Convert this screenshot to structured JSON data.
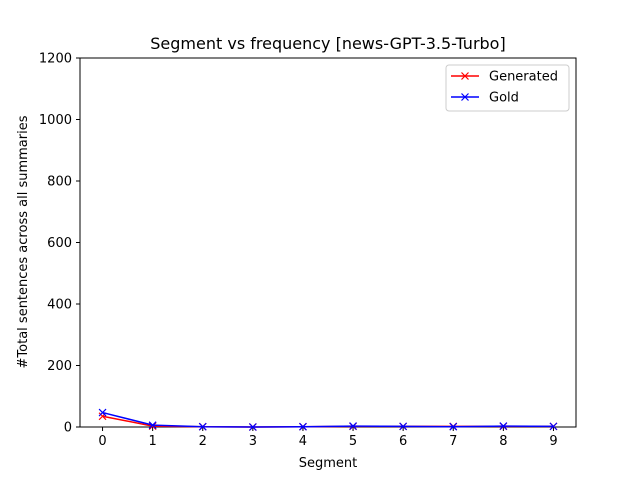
{
  "chart_data": {
    "type": "line",
    "title": "Segment vs frequency [news-GPT-3.5-Turbo]",
    "xlabel": "Segment",
    "ylabel": "#Total sentences across all summaries",
    "x": [
      0,
      1,
      2,
      3,
      4,
      5,
      6,
      7,
      8,
      9
    ],
    "xticks": [
      "0",
      "1",
      "2",
      "3",
      "4",
      "5",
      "6",
      "7",
      "8",
      "9"
    ],
    "yticks": [
      "0",
      "200",
      "400",
      "600",
      "800",
      "1000",
      "1200"
    ],
    "xlim": [
      -0.45,
      9.45
    ],
    "ylim": [
      0,
      1200
    ],
    "grid": false,
    "legend": "top-right",
    "series": [
      {
        "name": "Generated",
        "color": "#ff0000",
        "marker": "x",
        "values": [
          35,
          3,
          1,
          0,
          1,
          2,
          2,
          2,
          2,
          2
        ]
      },
      {
        "name": "Gold",
        "color": "#0000ff",
        "marker": "x",
        "values": [
          47,
          6,
          1,
          0,
          1,
          3,
          2,
          1,
          3,
          2
        ]
      }
    ]
  }
}
